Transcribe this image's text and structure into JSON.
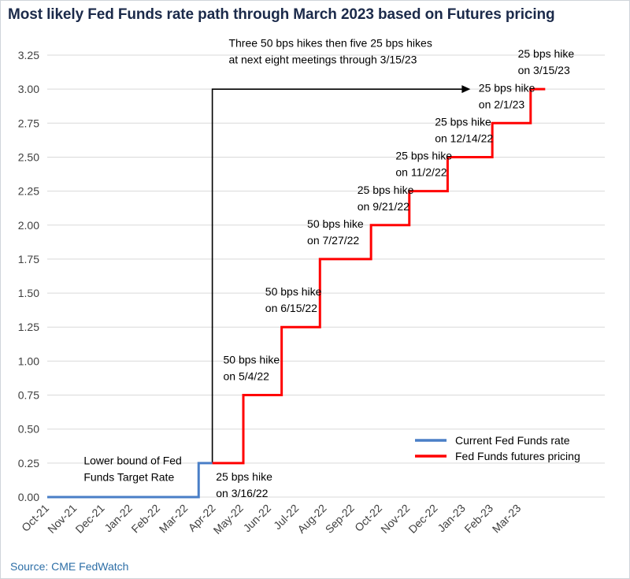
{
  "title": "Most likely Fed Funds rate path through March 2023 based on Futures pricing",
  "source": "Source: CME FedWatch",
  "colors": {
    "current": "#4a7fc7",
    "futures": "#ff0000",
    "axis": "#000000",
    "title": "#1b2a4a",
    "source": "#2e6fa7"
  },
  "chart_data": {
    "type": "line",
    "title": "Most likely Fed Funds rate path through March 2023 based on Futures pricing",
    "xlabel": "",
    "ylabel": "",
    "ylim": [
      0,
      3.25
    ],
    "yticks": [
      "0.00",
      "0.25",
      "0.50",
      "0.75",
      "1.00",
      "1.25",
      "1.50",
      "1.75",
      "2.00",
      "2.25",
      "2.50",
      "2.75",
      "3.00",
      "3.25"
    ],
    "categories": [
      "Oct-21",
      "Nov-21",
      "Dec-21",
      "Jan-22",
      "Feb-22",
      "Mar-22",
      "Apr-22",
      "May-22",
      "Jun-22",
      "Jul-22",
      "Aug-22",
      "Sep-22",
      "Oct-22",
      "Nov-22",
      "Dec-22",
      "Jan-23",
      "Feb-23",
      "Mar-23"
    ],
    "grid": "horizontal",
    "legend_position": "bottom-right",
    "series": [
      {
        "name": "Current Fed Funds rate",
        "color": "#4a7fc7",
        "points": [
          {
            "x": "2021-10-01",
            "y": 0.0
          },
          {
            "x": "2022-03-16",
            "y": 0.0
          },
          {
            "x": "2022-03-16",
            "y": 0.25
          },
          {
            "x": "2022-03-31",
            "y": 0.25
          }
        ]
      },
      {
        "name": "Fed Funds futures pricing",
        "color": "#ff0000",
        "points": [
          {
            "x": "2022-03-31",
            "y": 0.25
          },
          {
            "x": "2022-05-04",
            "y": 0.25
          },
          {
            "x": "2022-05-04",
            "y": 0.75
          },
          {
            "x": "2022-06-15",
            "y": 0.75
          },
          {
            "x": "2022-06-15",
            "y": 1.25
          },
          {
            "x": "2022-07-27",
            "y": 1.25
          },
          {
            "x": "2022-07-27",
            "y": 1.75
          },
          {
            "x": "2022-09-21",
            "y": 1.75
          },
          {
            "x": "2022-09-21",
            "y": 2.0
          },
          {
            "x": "2022-11-02",
            "y": 2.0
          },
          {
            "x": "2022-11-02",
            "y": 2.25
          },
          {
            "x": "2022-12-14",
            "y": 2.25
          },
          {
            "x": "2022-12-14",
            "y": 2.5
          },
          {
            "x": "2023-02-01",
            "y": 2.5
          },
          {
            "x": "2023-02-01",
            "y": 2.75
          },
          {
            "x": "2023-03-15",
            "y": 2.75
          },
          {
            "x": "2023-03-15",
            "y": 3.0
          },
          {
            "x": "2023-03-31",
            "y": 3.0
          }
        ]
      }
    ],
    "annotations": [
      {
        "lines": [
          "Lower bound of Fed",
          "Funds Target Rate"
        ],
        "x": "2021-11-10",
        "y": 0.12
      },
      {
        "lines": [
          "25 bps hike",
          "on 3/16/22"
        ],
        "x": "2022-04-04",
        "y": 0.0
      },
      {
        "lines": [
          "50 bps hike",
          "on 5/4/22"
        ],
        "x": "2022-04-12",
        "y": 0.86
      },
      {
        "lines": [
          "50 bps hike",
          "on 6/15/22"
        ],
        "x": "2022-05-28",
        "y": 1.36
      },
      {
        "lines": [
          "50 bps hike",
          "on 7/27/22"
        ],
        "x": "2022-07-13",
        "y": 1.86
      },
      {
        "lines": [
          "25 bps hike",
          "on 9/21/22"
        ],
        "x": "2022-09-06",
        "y": 2.11
      },
      {
        "lines": [
          "25 bps hike",
          "on 11/2/22"
        ],
        "x": "2022-10-18",
        "y": 2.36
      },
      {
        "lines": [
          "25 bps hike",
          "on 12/14/22"
        ],
        "x": "2022-11-30",
        "y": 2.61
      },
      {
        "lines": [
          "25 bps hike",
          "on 2/1/23"
        ],
        "x": "2023-01-17",
        "y": 2.86
      },
      {
        "lines": [
          "25 bps hike",
          "on 3/15/23"
        ],
        "x": "2023-03-01",
        "y": 3.11
      },
      {
        "lines": [
          "Three 50 bps hikes then five 25 bps hikes",
          "at next eight meetings through 3/15/23"
        ],
        "x": "2022-04-18",
        "y": 3.19
      }
    ],
    "bracket_arrow": {
      "x_start": "2022-03-31",
      "y_low": 0.25,
      "y_high": 3.0,
      "x_end": "2023-01-08"
    }
  }
}
